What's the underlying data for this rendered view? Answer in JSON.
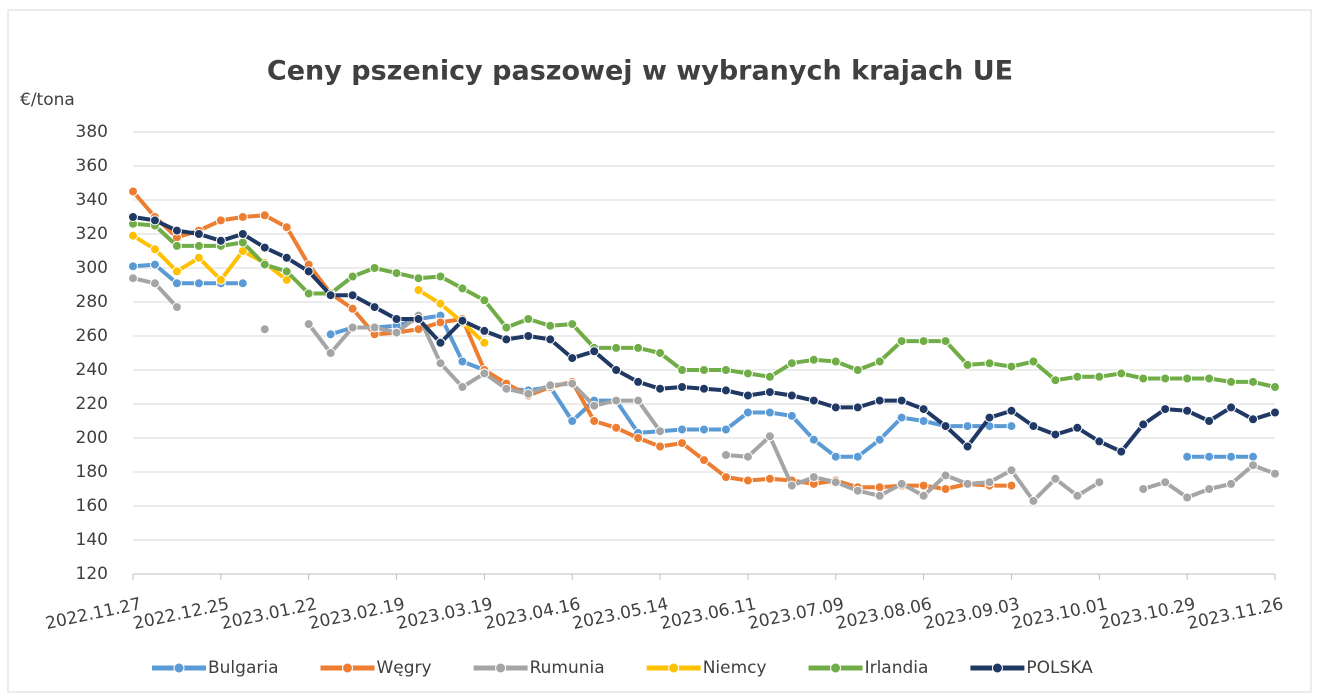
{
  "chart_data": {
    "type": "line",
    "title": "Ceny pszenicy paszowej w wybranych krajach UE",
    "y_label": "€/tona",
    "categories": [
      "2022.11.27",
      null,
      null,
      null,
      "2022.12.25",
      null,
      null,
      null,
      "2023.01.22",
      null,
      null,
      null,
      "2023.02.19",
      null,
      null,
      null,
      "2023.03.19",
      null,
      null,
      null,
      "2023.04.16",
      null,
      null,
      null,
      "2023.05.14",
      null,
      null,
      null,
      "2023.06.11",
      null,
      null,
      null,
      "2023.07.09",
      null,
      null,
      null,
      "2023.08.06",
      null,
      null,
      null,
      "2023.09.03",
      null,
      null,
      null,
      "2023.10.01",
      null,
      null,
      null,
      "2023.10.29",
      null,
      null,
      null,
      "2023.11.26"
    ],
    "ylim": [
      120,
      380
    ],
    "yticks": [
      120,
      140,
      160,
      180,
      200,
      220,
      240,
      260,
      280,
      300,
      320,
      340,
      360,
      380
    ],
    "grid": true,
    "legend": "bottom",
    "series": [
      {
        "name": "Bulgaria",
        "color": "#5b9bd5",
        "values": [
          301,
          302,
          291,
          291,
          291,
          291,
          null,
          null,
          null,
          261,
          265,
          265,
          266,
          270,
          272,
          245,
          240,
          229,
          228,
          230,
          210,
          222,
          222,
          203,
          204,
          205,
          205,
          205,
          215,
          215,
          213,
          199,
          189,
          189,
          199,
          212,
          210,
          207,
          207,
          207,
          207,
          null,
          null,
          null,
          null,
          null,
          null,
          null,
          189,
          189,
          189,
          189,
          null
        ]
      },
      {
        "name": "Węgry",
        "color": "#ed7d31",
        "values": [
          345,
          330,
          318,
          322,
          328,
          330,
          331,
          324,
          302,
          285,
          276,
          261,
          262,
          264,
          268,
          270,
          240,
          232,
          225,
          230,
          233,
          210,
          206,
          200,
          195,
          197,
          187,
          177,
          175,
          176,
          175,
          173,
          175,
          171,
          171,
          172,
          172,
          170,
          173,
          172,
          172,
          null,
          null,
          null,
          null,
          null,
          null,
          null,
          null,
          null,
          null,
          null,
          null
        ]
      },
      {
        "name": "Rumunia",
        "color": "#a5a5a5",
        "values": [
          294,
          291,
          277,
          null,
          null,
          null,
          264,
          null,
          267,
          250,
          265,
          265,
          262,
          272,
          244,
          230,
          238,
          229,
          226,
          231,
          232,
          219,
          222,
          222,
          204,
          null,
          null,
          190,
          189,
          201,
          172,
          177,
          174,
          169,
          166,
          173,
          166,
          178,
          173,
          174,
          181,
          163,
          176,
          166,
          174,
          null,
          170,
          174,
          165,
          170,
          173,
          184,
          179
        ]
      },
      {
        "name": "Niemcy",
        "color": "#ffc000",
        "values": [
          319,
          311,
          298,
          306,
          293,
          310,
          303,
          293,
          null,
          null,
          null,
          null,
          null,
          287,
          279,
          268,
          256,
          null,
          null,
          null,
          null,
          null,
          null,
          null,
          null,
          null,
          null,
          null,
          null,
          null,
          null,
          null,
          null,
          null,
          null,
          null,
          null,
          null,
          null,
          null,
          null,
          null,
          null,
          null,
          null,
          null,
          null,
          null,
          null,
          null,
          null,
          null,
          null
        ]
      },
      {
        "name": "Irlandia",
        "color": "#70ad47",
        "values": [
          326,
          325,
          313,
          313,
          313,
          315,
          302,
          298,
          285,
          285,
          295,
          300,
          297,
          294,
          295,
          288,
          281,
          265,
          270,
          266,
          267,
          253,
          253,
          253,
          250,
          240,
          240,
          240,
          238,
          236,
          244,
          246,
          245,
          240,
          245,
          257,
          257,
          257,
          243,
          244,
          242,
          245,
          234,
          236,
          236,
          238,
          235,
          235,
          235,
          235,
          233,
          233,
          230
        ]
      },
      {
        "name": "POLSKA",
        "color": "#203864",
        "values": [
          330,
          328,
          322,
          320,
          316,
          320,
          312,
          306,
          298,
          284,
          284,
          277,
          270,
          270,
          256,
          269,
          263,
          258,
          260,
          258,
          247,
          251,
          240,
          233,
          229,
          230,
          229,
          228,
          225,
          227,
          225,
          222,
          218,
          218,
          222,
          222,
          217,
          207,
          195,
          212,
          216,
          207,
          202,
          206,
          198,
          192,
          208,
          217,
          216,
          210,
          218,
          211,
          215
        ]
      }
    ]
  }
}
